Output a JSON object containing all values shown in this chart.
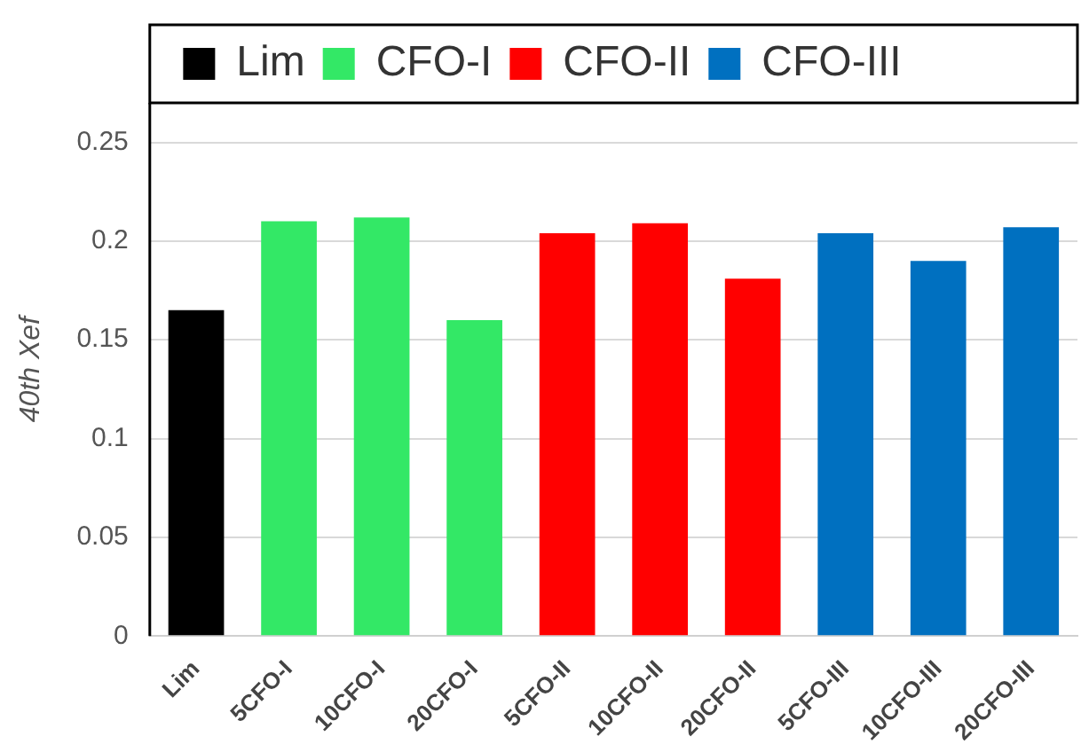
{
  "chart_data": {
    "type": "bar",
    "ylabel": "40th Xef",
    "categories": [
      "Lim",
      "5CFO-I",
      "10CFO-I",
      "20CFO-I",
      "5CFO-II",
      "10CFO-II",
      "20CFO-II",
      "5CFO-III",
      "10CFO-III",
      "20CFO-III"
    ],
    "series": [
      {
        "name": "Lim",
        "color": "#000000",
        "values": [
          0.165,
          null,
          null,
          null,
          null,
          null,
          null,
          null,
          null,
          null
        ]
      },
      {
        "name": "CFO-I",
        "color": "#33e866",
        "values": [
          null,
          0.21,
          0.212,
          0.16,
          null,
          null,
          null,
          null,
          null,
          null
        ]
      },
      {
        "name": "CFO-II",
        "color": "#ff0000",
        "values": [
          null,
          null,
          null,
          null,
          0.204,
          0.209,
          0.181,
          null,
          null,
          null
        ]
      },
      {
        "name": "CFO-III",
        "color": "#0070c0",
        "values": [
          null,
          null,
          null,
          null,
          null,
          null,
          null,
          0.204,
          0.19,
          0.207
        ]
      }
    ],
    "ylim": [
      0,
      0.27
    ],
    "yticks": [
      0,
      0.05,
      0.1,
      0.15,
      {
        "value": 0.2,
        "label": "0.2"
      },
      0.25
    ],
    "grid": "y",
    "legend": "top"
  }
}
